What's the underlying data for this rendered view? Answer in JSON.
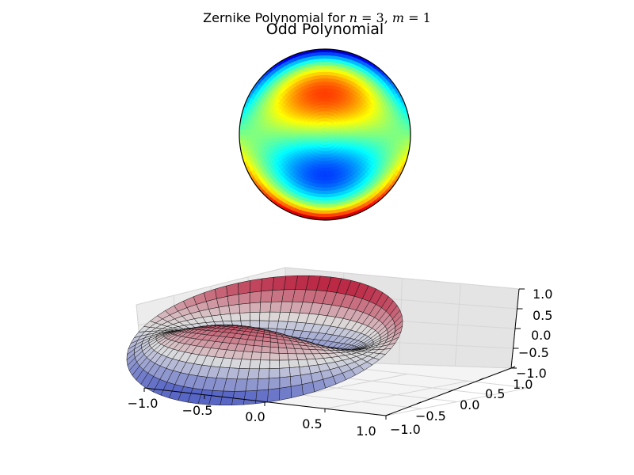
{
  "figure": {
    "suptitle_prefix": "Zernike Polynomial for ",
    "suptitle_n": "n",
    "suptitle_eq1": " = 3, ",
    "suptitle_m": "m",
    "suptitle_eq2": " = 1"
  },
  "chart_data": [
    {
      "type": "heatmap",
      "title": "Odd Polynomial",
      "function": "Z(rho,theta) = (3*rho^3 - 2*rho) * sin(theta)",
      "n": 3,
      "m": 1,
      "domain": "unit disk",
      "colormap": "jet",
      "color_range": [
        -1,
        1
      ],
      "axes_visible": false
    },
    {
      "type": "surface3d",
      "function": "Z(rho,theta) = (3*rho^3 - 2*rho) * sin(theta)",
      "colormap": "coolwarm",
      "x_ticks": [
        "−1.0",
        "−0.5",
        "0.0",
        "0.5",
        "1.0"
      ],
      "y_ticks": [
        "−1.0",
        "−0.5",
        "0.0",
        "0.5",
        "1.0"
      ],
      "z_ticks": [
        "−1.0",
        "−0.5",
        "0.0",
        "0.5",
        "1.0"
      ],
      "xlim": [
        -1,
        1
      ],
      "ylim": [
        -1,
        1
      ],
      "zlim": [
        -1,
        1
      ],
      "grid": true
    }
  ]
}
